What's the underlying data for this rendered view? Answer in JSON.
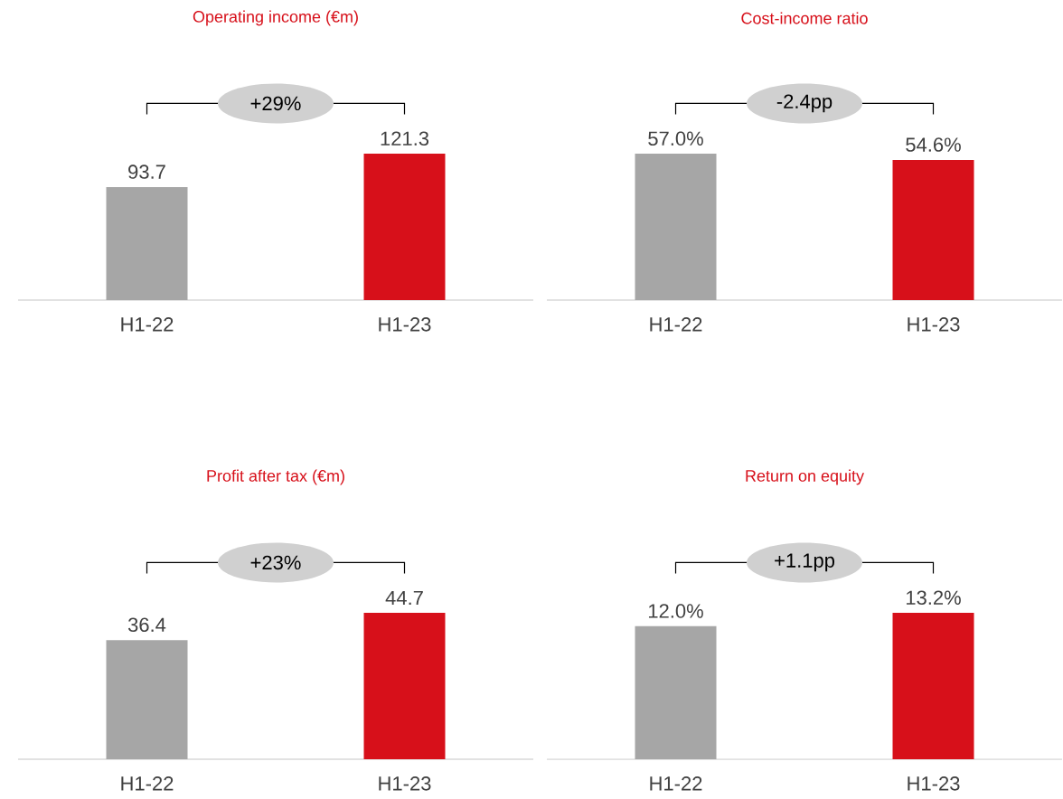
{
  "chart_data": [
    {
      "type": "bar",
      "title": "Operating income (€m)",
      "categories": [
        "H1-22",
        "H1-23"
      ],
      "values": [
        93.7,
        121.3
      ],
      "colors": [
        "#a6a6a6",
        "#d7101a"
      ],
      "data_labels": true,
      "annotations": [
        "+29%"
      ]
    },
    {
      "type": "bar",
      "title": "Cost-income ratio",
      "categories": [
        "H1-22",
        "H1-23"
      ],
      "values": [
        57.0,
        54.6
      ],
      "colors": [
        "#a6a6a6",
        "#d7101a"
      ],
      "value_labels": [
        "57.0%",
        "54.6%"
      ],
      "annotations": [
        "-2.4pp"
      ]
    },
    {
      "type": "bar",
      "title": "Profit after tax (€m)",
      "categories": [
        "H1-22",
        "H1-23"
      ],
      "values": [
        36.4,
        44.7
      ],
      "colors": [
        "#a6a6a6",
        "#d7101a"
      ],
      "data_labels": true,
      "annotations": [
        "+23%"
      ]
    },
    {
      "type": "bar",
      "title": "Return on equity",
      "categories": [
        "H1-22",
        "H1-23"
      ],
      "values": [
        12.0,
        13.2
      ],
      "colors": [
        "#a6a6a6",
        "#d7101a"
      ],
      "value_labels": [
        "12.0%",
        "13.2%"
      ],
      "annotations": [
        "+1.1pp"
      ]
    }
  ]
}
